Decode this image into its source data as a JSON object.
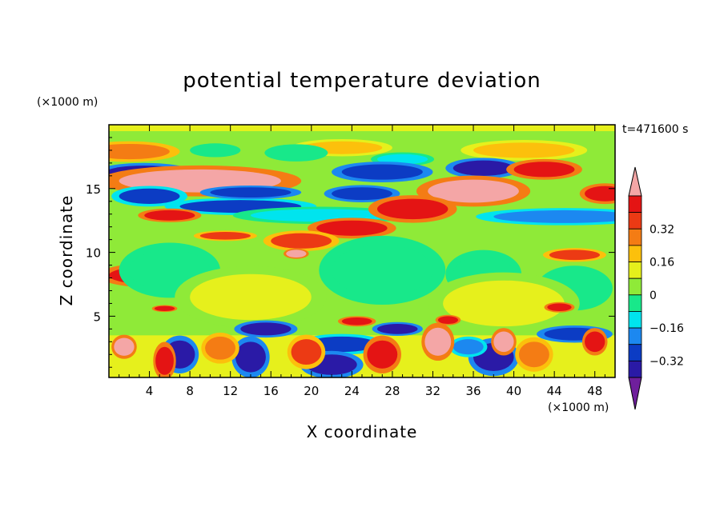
{
  "chart_data": {
    "type": "heatmap",
    "title": "potential temperature deviation",
    "xlabel": "X coordinate",
    "ylabel": "Z coordinate",
    "x_unit_label": "(×1000 m)",
    "z_unit_label": "(×1000 m)",
    "time_label": "t=471600 s",
    "xlim": [
      0,
      50
    ],
    "ylim": [
      0.2,
      20
    ],
    "x_ticks": [
      4,
      8,
      12,
      16,
      20,
      24,
      28,
      32,
      36,
      40,
      44,
      48
    ],
    "y_ticks": [
      5,
      10,
      15
    ],
    "colorbar": {
      "levels": [
        -0.48,
        -0.4,
        -0.32,
        -0.24,
        -0.16,
        -0.08,
        0,
        0.08,
        0.16,
        0.24,
        0.32,
        0.4,
        0.48
      ],
      "tick_labels": [
        "0.32",
        "0.16",
        "0",
        "-0.16",
        "-0.32"
      ],
      "tick_values": [
        0.32,
        0.16,
        0,
        -0.16,
        -0.32
      ],
      "colors": [
        "#6f1f9c",
        "#2a1aa6",
        "#0c3cc4",
        "#1c88f0",
        "#00e4ee",
        "#18e88a",
        "#8fea38",
        "#e6f01c",
        "#fcc00c",
        "#f47c14",
        "#ec3a14",
        "#e41414",
        "#f4a6a6"
      ]
    },
    "features": [
      {
        "type": "band",
        "x": [
          0,
          50
        ],
        "z": [
          19.5,
          20
        ],
        "value": 0.05
      },
      {
        "type": "band",
        "x": [
          0,
          50
        ],
        "z": [
          0.2,
          3.5
        ],
        "value": 0.04
      },
      {
        "type": "blob",
        "x": 2.0,
        "z": 17.9,
        "rx": 4.0,
        "rz": 0.6,
        "value": 0.2
      },
      {
        "type": "blob",
        "x": 23.0,
        "z": 18.2,
        "rx": 4.0,
        "rz": 0.5,
        "value": 0.18
      },
      {
        "type": "blob",
        "x": 41.0,
        "z": 18.0,
        "rx": 5.0,
        "rz": 0.6,
        "value": 0.18
      },
      {
        "type": "blob",
        "x": 18.5,
        "z": 17.8,
        "rx": 2.5,
        "rz": 0.5,
        "value": -0.12
      },
      {
        "type": "blob",
        "x": 10.5,
        "z": 18.0,
        "rx": 2.0,
        "rz": 0.4,
        "value": -0.1
      },
      {
        "type": "blob",
        "x": 29.0,
        "z": 17.3,
        "rx": 2.5,
        "rz": 0.4,
        "value": -0.14
      },
      {
        "type": "blob",
        "x": 37.0,
        "z": 16.6,
        "rx": 3.0,
        "rz": 0.6,
        "value": -0.4
      },
      {
        "type": "blob",
        "x": 27.0,
        "z": 16.3,
        "rx": 4.0,
        "rz": 0.6,
        "value": -0.36
      },
      {
        "type": "blob",
        "x": 3.5,
        "z": 16.2,
        "rx": 4.0,
        "rz": 0.6,
        "value": -0.38
      },
      {
        "type": "blob",
        "x": 43.0,
        "z": 16.5,
        "rx": 3.0,
        "rz": 0.6,
        "value": 0.36
      },
      {
        "type": "blob",
        "x": 9.0,
        "z": 15.6,
        "rx": 8.0,
        "rz": 0.9,
        "value": 0.44
      },
      {
        "type": "blob",
        "x": 4.0,
        "z": 14.4,
        "rx": 3.0,
        "rz": 0.6,
        "value": -0.32
      },
      {
        "type": "blob",
        "x": 13.0,
        "z": 13.6,
        "rx": 6.0,
        "rz": 0.5,
        "value": -0.3
      },
      {
        "type": "blob",
        "x": 14.0,
        "z": 14.7,
        "rx": 4.0,
        "rz": 0.4,
        "value": -0.34
      },
      {
        "type": "blob",
        "x": 25.0,
        "z": 14.6,
        "rx": 3.0,
        "rz": 0.5,
        "value": -0.36
      },
      {
        "type": "blob",
        "x": 21.0,
        "z": 12.9,
        "rx": 7.0,
        "rz": 0.5,
        "value": -0.2
      },
      {
        "type": "blob",
        "x": 45.0,
        "z": 12.8,
        "rx": 7.0,
        "rz": 0.5,
        "value": -0.22
      },
      {
        "type": "blob",
        "x": 36.0,
        "z": 14.8,
        "rx": 4.5,
        "rz": 0.9,
        "value": 0.44
      },
      {
        "type": "blob",
        "x": 30.0,
        "z": 13.4,
        "rx": 3.5,
        "rz": 0.8,
        "value": 0.4
      },
      {
        "type": "blob",
        "x": 24.0,
        "z": 11.9,
        "rx": 3.5,
        "rz": 0.6,
        "value": 0.36
      },
      {
        "type": "blob",
        "x": 49.0,
        "z": 14.6,
        "rx": 2.0,
        "rz": 0.6,
        "value": 0.42
      },
      {
        "type": "blob",
        "x": 6.0,
        "z": 12.9,
        "rx": 2.5,
        "rz": 0.4,
        "value": 0.36
      },
      {
        "type": "blob",
        "x": 11.5,
        "z": 11.3,
        "rx": 2.5,
        "rz": 0.3,
        "value": 0.28
      },
      {
        "type": "blob",
        "x": 19.0,
        "z": 10.9,
        "rx": 3.0,
        "rz": 0.6,
        "value": 0.3
      },
      {
        "type": "blob",
        "x": 18.5,
        "z": 9.9,
        "rx": 1.0,
        "rz": 0.3,
        "value": 0.44
      },
      {
        "type": "blob",
        "x": 46.0,
        "z": 9.8,
        "rx": 2.5,
        "rz": 0.4,
        "value": 0.3
      },
      {
        "type": "blob",
        "x": 4.0,
        "z": 8.2,
        "rx": 4.0,
        "rz": 0.7,
        "value": 0.36
      },
      {
        "type": "blob",
        "x": 6.0,
        "z": 8.6,
        "rx": 4.0,
        "rz": 1.6,
        "value": -0.12
      },
      {
        "type": "blob",
        "x": 27.0,
        "z": 8.6,
        "rx": 5.0,
        "rz": 2.0,
        "value": -0.1
      },
      {
        "type": "blob",
        "x": 37.0,
        "z": 8.3,
        "rx": 3.0,
        "rz": 1.4,
        "value": -0.12
      },
      {
        "type": "blob",
        "x": 46.0,
        "z": 7.2,
        "rx": 3.0,
        "rz": 1.3,
        "value": -0.12
      },
      {
        "type": "blob",
        "x": 14.0,
        "z": 6.5,
        "rx": 6.0,
        "rz": 1.8,
        "value": 0.06
      },
      {
        "type": "blob",
        "x": 39.0,
        "z": 6.0,
        "rx": 6.0,
        "rz": 1.8,
        "value": 0.06
      },
      {
        "type": "blob",
        "x": 5.5,
        "z": 5.6,
        "rx": 1.0,
        "rz": 0.2,
        "value": 0.4
      },
      {
        "type": "blob",
        "x": 24.5,
        "z": 4.6,
        "rx": 1.5,
        "rz": 0.3,
        "value": 0.4
      },
      {
        "type": "blob",
        "x": 33.5,
        "z": 4.7,
        "rx": 1.0,
        "rz": 0.3,
        "value": 0.38
      },
      {
        "type": "blob",
        "x": 44.5,
        "z": 5.7,
        "rx": 1.2,
        "rz": 0.3,
        "value": 0.36
      },
      {
        "type": "blob",
        "x": 15.5,
        "z": 4.0,
        "rx": 2.5,
        "rz": 0.5,
        "value": -0.4
      },
      {
        "type": "blob",
        "x": 28.5,
        "z": 4.0,
        "rx": 2.0,
        "rz": 0.4,
        "value": -0.4
      },
      {
        "type": "blob",
        "x": 46.0,
        "z": 3.6,
        "rx": 3.0,
        "rz": 0.5,
        "value": -0.36
      },
      {
        "type": "blob",
        "x": 23.0,
        "z": 2.8,
        "rx": 3.5,
        "rz": 0.6,
        "value": -0.3
      },
      {
        "type": "blob",
        "x": 7.0,
        "z": 2.0,
        "rx": 1.5,
        "rz": 1.1,
        "value": -0.42
      },
      {
        "type": "blob",
        "x": 14.0,
        "z": 1.8,
        "rx": 1.5,
        "rz": 1.2,
        "value": -0.42
      },
      {
        "type": "blob",
        "x": 22.0,
        "z": 1.2,
        "rx": 2.5,
        "rz": 0.8,
        "value": -0.4
      },
      {
        "type": "blob",
        "x": 38.0,
        "z": 1.8,
        "rx": 2.0,
        "rz": 1.1,
        "value": -0.42
      },
      {
        "type": "blob",
        "x": 35.5,
        "z": 2.6,
        "rx": 1.5,
        "rz": 0.6,
        "value": -0.24
      },
      {
        "type": "blob",
        "x": 1.5,
        "z": 2.6,
        "rx": 1.0,
        "rz": 0.7,
        "value": 0.44
      },
      {
        "type": "blob",
        "x": 5.5,
        "z": 1.5,
        "rx": 0.9,
        "rz": 1.1,
        "value": 0.38
      },
      {
        "type": "blob",
        "x": 11.0,
        "z": 2.5,
        "rx": 1.5,
        "rz": 0.9,
        "value": 0.22
      },
      {
        "type": "blob",
        "x": 19.5,
        "z": 2.2,
        "rx": 1.5,
        "rz": 1.0,
        "value": 0.28
      },
      {
        "type": "blob",
        "x": 27.0,
        "z": 2.0,
        "rx": 1.5,
        "rz": 1.1,
        "value": 0.36
      },
      {
        "type": "blob",
        "x": 32.5,
        "z": 3.0,
        "rx": 1.3,
        "rz": 1.1,
        "value": 0.44
      },
      {
        "type": "blob",
        "x": 39.0,
        "z": 3.0,
        "rx": 1.0,
        "rz": 0.8,
        "value": 0.44
      },
      {
        "type": "blob",
        "x": 42.0,
        "z": 2.0,
        "rx": 1.5,
        "rz": 1.0,
        "value": 0.26
      },
      {
        "type": "blob",
        "x": 48.0,
        "z": 3.0,
        "rx": 1.0,
        "rz": 0.8,
        "value": 0.42
      }
    ]
  }
}
